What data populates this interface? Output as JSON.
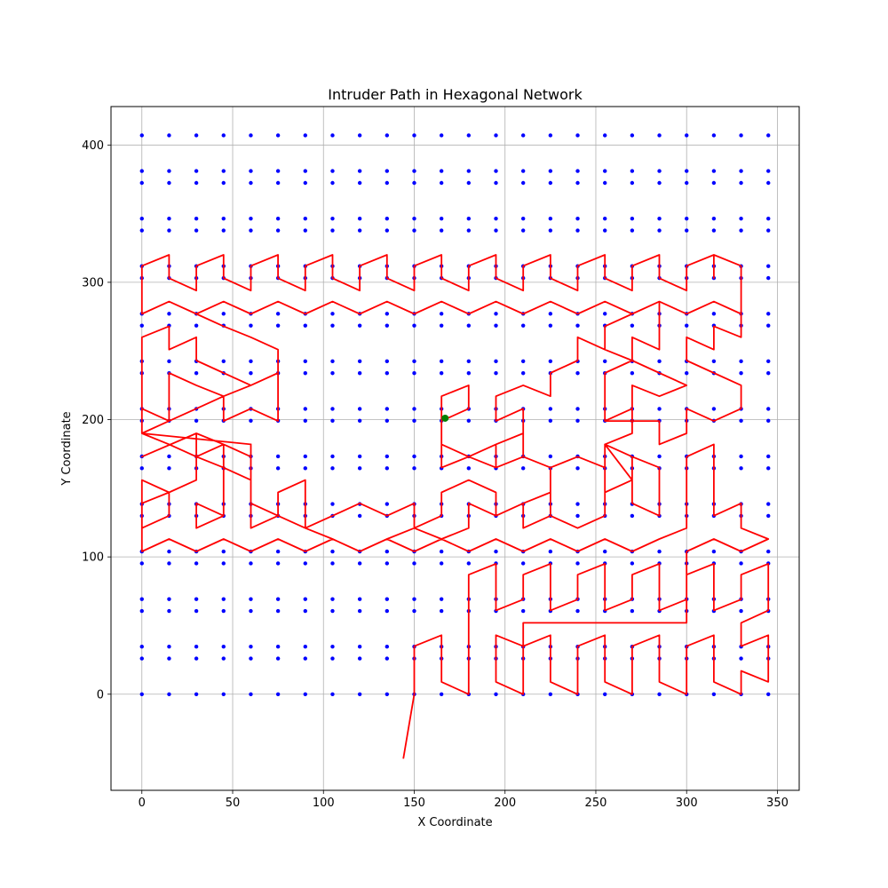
{
  "chart_data": {
    "type": "scatter",
    "title": "Intruder Path in Hexagonal Network",
    "xlabel": "X Coordinate",
    "ylabel": "Y Coordinate",
    "xlim": [
      -17,
      362
    ],
    "ylim": [
      -70,
      428
    ],
    "xticks": [
      0,
      50,
      100,
      150,
      200,
      250,
      300,
      350
    ],
    "yticks": [
      0,
      100,
      200,
      300,
      400
    ],
    "grid": true,
    "colors": {
      "nodes": "#0000ff",
      "path": "#ff0000",
      "marker": "#008000"
    },
    "nodes": {
      "description_free": true,
      "x_step": 15,
      "x_max": 345,
      "y_step": 17.32,
      "rows": 24,
      "column_offset_odd": 8.66
    },
    "path": [
      [
        144,
        -47
      ],
      [
        150,
        0
      ],
      [
        150,
        35
      ],
      [
        165,
        43
      ],
      [
        165,
        9
      ],
      [
        180,
        0
      ],
      [
        180,
        87
      ],
      [
        195,
        95
      ],
      [
        195,
        61
      ],
      [
        210,
        69
      ],
      [
        210,
        87
      ],
      [
        225,
        95
      ],
      [
        225,
        61
      ],
      [
        240,
        69
      ],
      [
        240,
        87
      ],
      [
        255,
        95
      ],
      [
        255,
        61
      ],
      [
        270,
        69
      ],
      [
        270,
        87
      ],
      [
        285,
        95
      ],
      [
        285,
        61
      ],
      [
        300,
        69
      ],
      [
        300,
        87
      ],
      [
        315,
        95
      ],
      [
        315,
        61
      ],
      [
        330,
        69
      ],
      [
        330,
        87
      ],
      [
        345,
        95
      ],
      [
        345,
        61
      ],
      [
        330,
        52
      ],
      [
        330,
        35
      ],
      [
        345,
        43
      ],
      [
        345,
        9
      ],
      [
        330,
        17
      ],
      [
        330,
        0
      ],
      [
        315,
        9
      ],
      [
        315,
        43
      ],
      [
        300,
        35
      ],
      [
        300,
        0
      ],
      [
        285,
        9
      ],
      [
        285,
        43
      ],
      [
        270,
        35
      ],
      [
        270,
        0
      ],
      [
        255,
        9
      ],
      [
        255,
        43
      ],
      [
        240,
        35
      ],
      [
        240,
        0
      ],
      [
        225,
        9
      ],
      [
        225,
        43
      ],
      [
        210,
        35
      ],
      [
        210,
        0
      ],
      [
        195,
        9
      ],
      [
        195,
        43
      ],
      [
        210,
        35
      ],
      [
        210,
        52
      ],
      [
        300,
        52
      ],
      [
        300,
        104
      ],
      [
        315,
        113
      ],
      [
        330,
        104
      ],
      [
        345,
        113
      ],
      [
        330,
        121
      ],
      [
        330,
        139
      ],
      [
        315,
        130
      ],
      [
        315,
        182
      ],
      [
        300,
        173
      ],
      [
        300,
        121
      ],
      [
        285,
        113
      ],
      [
        270,
        104
      ],
      [
        255,
        113
      ],
      [
        240,
        104
      ],
      [
        225,
        113
      ],
      [
        210,
        104
      ],
      [
        195,
        113
      ],
      [
        180,
        104
      ],
      [
        165,
        113
      ],
      [
        150,
        104
      ],
      [
        135,
        113
      ],
      [
        120,
        104
      ],
      [
        105,
        113
      ],
      [
        90,
        104
      ],
      [
        75,
        113
      ],
      [
        60,
        104
      ],
      [
        45,
        113
      ],
      [
        30,
        104
      ],
      [
        15,
        113
      ],
      [
        0,
        104
      ],
      [
        0,
        156
      ],
      [
        15,
        147
      ],
      [
        0,
        139
      ],
      [
        0,
        121
      ],
      [
        15,
        130
      ],
      [
        15,
        147
      ],
      [
        30,
        156
      ],
      [
        30,
        173
      ],
      [
        45,
        165
      ],
      [
        45,
        130
      ],
      [
        30,
        121
      ],
      [
        30,
        139
      ],
      [
        45,
        130
      ],
      [
        45,
        165
      ],
      [
        30,
        173
      ],
      [
        30,
        190
      ],
      [
        0,
        173
      ],
      [
        30,
        190
      ],
      [
        45,
        182
      ],
      [
        60,
        173
      ],
      [
        60,
        121
      ],
      [
        75,
        130
      ],
      [
        75,
        147
      ],
      [
        90,
        156
      ],
      [
        90,
        121
      ],
      [
        105,
        130
      ],
      [
        120,
        139
      ],
      [
        135,
        130
      ],
      [
        150,
        139
      ],
      [
        150,
        121
      ],
      [
        165,
        130
      ],
      [
        165,
        147
      ],
      [
        180,
        156
      ],
      [
        195,
        147
      ],
      [
        195,
        130
      ],
      [
        210,
        139
      ],
      [
        210,
        121
      ],
      [
        225,
        130
      ],
      [
        225,
        165
      ],
      [
        240,
        173
      ],
      [
        255,
        165
      ],
      [
        255,
        147
      ],
      [
        270,
        156
      ],
      [
        270,
        139
      ],
      [
        285,
        130
      ],
      [
        285,
        165
      ],
      [
        270,
        173
      ],
      [
        255,
        182
      ],
      [
        270,
        156
      ],
      [
        255,
        182
      ],
      [
        270,
        190
      ],
      [
        270,
        208
      ],
      [
        255,
        199
      ],
      [
        255,
        234
      ],
      [
        270,
        243
      ],
      [
        270,
        260
      ],
      [
        285,
        251
      ],
      [
        285,
        286
      ],
      [
        300,
        277
      ],
      [
        315,
        286
      ],
      [
        330,
        277
      ],
      [
        330,
        260
      ],
      [
        315,
        268
      ],
      [
        315,
        251
      ],
      [
        300,
        260
      ],
      [
        300,
        243
      ],
      [
        315,
        234
      ],
      [
        330,
        225
      ],
      [
        330,
        208
      ],
      [
        315,
        199
      ],
      [
        300,
        208
      ],
      [
        300,
        190
      ],
      [
        285,
        182
      ],
      [
        285,
        199
      ],
      [
        255,
        199
      ],
      [
        270,
        208
      ],
      [
        270,
        225
      ],
      [
        285,
        217
      ],
      [
        300,
        225
      ],
      [
        285,
        234
      ],
      [
        270,
        243
      ],
      [
        255,
        251
      ],
      [
        240,
        260
      ],
      [
        240,
        243
      ],
      [
        225,
        234
      ],
      [
        225,
        217
      ],
      [
        210,
        225
      ],
      [
        195,
        217
      ],
      [
        195,
        199
      ],
      [
        210,
        208
      ],
      [
        210,
        190
      ],
      [
        195,
        182
      ],
      [
        180,
        173
      ],
      [
        165,
        182
      ],
      [
        165,
        199
      ],
      [
        165,
        217
      ],
      [
        180,
        225
      ],
      [
        180,
        208
      ],
      [
        165,
        199
      ],
      [
        165,
        165
      ],
      [
        180,
        173
      ],
      [
        195,
        165
      ],
      [
        195,
        182
      ],
      [
        210,
        190
      ],
      [
        210,
        173
      ],
      [
        195,
        165
      ],
      [
        210,
        173
      ],
      [
        225,
        165
      ],
      [
        240,
        173
      ],
      [
        255,
        165
      ],
      [
        255,
        182
      ],
      [
        270,
        173
      ],
      [
        270,
        156
      ],
      [
        255,
        147
      ],
      [
        255,
        130
      ],
      [
        240,
        121
      ],
      [
        225,
        130
      ],
      [
        225,
        147
      ],
      [
        210,
        139
      ],
      [
        195,
        130
      ],
      [
        180,
        139
      ],
      [
        180,
        121
      ],
      [
        165,
        113
      ],
      [
        150,
        121
      ],
      [
        135,
        113
      ],
      [
        120,
        104
      ],
      [
        105,
        113
      ],
      [
        90,
        121
      ],
      [
        75,
        130
      ],
      [
        60,
        139
      ],
      [
        60,
        156
      ],
      [
        45,
        165
      ],
      [
        45,
        182
      ],
      [
        30,
        173
      ],
      [
        15,
        182
      ],
      [
        0,
        190
      ],
      [
        0,
        208
      ],
      [
        15,
        199
      ],
      [
        15,
        234
      ],
      [
        30,
        225
      ],
      [
        45,
        217
      ],
      [
        60,
        225
      ],
      [
        75,
        234
      ],
      [
        75,
        199
      ],
      [
        60,
        208
      ],
      [
        45,
        199
      ],
      [
        45,
        217
      ],
      [
        30,
        208
      ],
      [
        15,
        199
      ],
      [
        0,
        190
      ],
      [
        0,
        260
      ],
      [
        15,
        268
      ],
      [
        15,
        251
      ],
      [
        30,
        260
      ],
      [
        30,
        243
      ],
      [
        45,
        234
      ],
      [
        60,
        225
      ],
      [
        75,
        234
      ],
      [
        75,
        251
      ],
      [
        60,
        260
      ],
      [
        45,
        268
      ],
      [
        30,
        277
      ],
      [
        15,
        286
      ],
      [
        0,
        277
      ],
      [
        0,
        312
      ],
      [
        15,
        320
      ],
      [
        15,
        303
      ],
      [
        30,
        294
      ],
      [
        30,
        312
      ],
      [
        45,
        320
      ],
      [
        45,
        303
      ],
      [
        60,
        294
      ],
      [
        60,
        312
      ],
      [
        75,
        320
      ],
      [
        75,
        303
      ],
      [
        90,
        294
      ],
      [
        90,
        312
      ],
      [
        105,
        320
      ],
      [
        105,
        303
      ],
      [
        120,
        294
      ],
      [
        120,
        312
      ],
      [
        135,
        320
      ],
      [
        135,
        303
      ],
      [
        150,
        294
      ],
      [
        150,
        312
      ],
      [
        165,
        320
      ],
      [
        165,
        303
      ],
      [
        180,
        294
      ],
      [
        180,
        312
      ],
      [
        195,
        320
      ],
      [
        195,
        303
      ],
      [
        210,
        294
      ],
      [
        210,
        312
      ],
      [
        225,
        320
      ],
      [
        225,
        303
      ],
      [
        240,
        294
      ],
      [
        240,
        312
      ],
      [
        255,
        320
      ],
      [
        255,
        303
      ],
      [
        270,
        294
      ],
      [
        270,
        312
      ],
      [
        285,
        320
      ],
      [
        285,
        303
      ],
      [
        300,
        294
      ],
      [
        300,
        312
      ],
      [
        315,
        320
      ],
      [
        315,
        303
      ],
      [
        315,
        320
      ],
      [
        330,
        312
      ],
      [
        330,
        277
      ],
      [
        315,
        286
      ],
      [
        300,
        277
      ],
      [
        285,
        286
      ],
      [
        270,
        277
      ],
      [
        255,
        286
      ],
      [
        240,
        277
      ],
      [
        225,
        286
      ],
      [
        210,
        277
      ],
      [
        195,
        286
      ],
      [
        180,
        277
      ],
      [
        165,
        286
      ],
      [
        150,
        277
      ],
      [
        135,
        286
      ],
      [
        120,
        277
      ],
      [
        105,
        286
      ],
      [
        90,
        277
      ],
      [
        75,
        286
      ],
      [
        60,
        277
      ],
      [
        45,
        286
      ],
      [
        30,
        277
      ],
      [
        15,
        286
      ],
      [
        0,
        277
      ],
      [
        15,
        286
      ],
      [
        30,
        277
      ],
      [
        45,
        286
      ],
      [
        60,
        277
      ],
      [
        75,
        286
      ],
      [
        90,
        277
      ],
      [
        105,
        286
      ],
      [
        120,
        277
      ],
      [
        135,
        286
      ],
      [
        150,
        277
      ],
      [
        165,
        286
      ],
      [
        180,
        277
      ],
      [
        195,
        286
      ],
      [
        210,
        277
      ],
      [
        225,
        286
      ],
      [
        240,
        277
      ],
      [
        255,
        286
      ],
      [
        270,
        277
      ],
      [
        255,
        268
      ],
      [
        255,
        251
      ],
      [
        240,
        260
      ],
      [
        240,
        243
      ],
      [
        225,
        234
      ],
      [
        225,
        217
      ],
      [
        210,
        225
      ],
      [
        195,
        217
      ]
    ],
    "path_fixes": [
      [
        0,
        190
      ],
      [
        60,
        182
      ],
      [
        60,
        173
      ]
    ],
    "marker": [
      167,
      201
    ]
  }
}
